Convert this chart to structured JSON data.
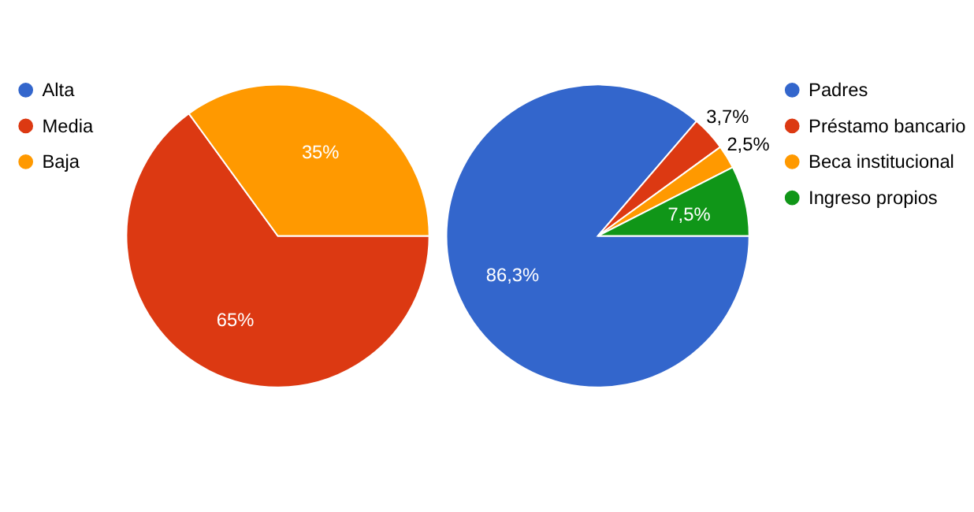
{
  "chart_data": [
    {
      "type": "pie",
      "categories": [
        "Alta",
        "Media",
        "Baja"
      ],
      "values": [
        0,
        65,
        35
      ],
      "colors": [
        "#3366cc",
        "#dc3912",
        "#ff9900"
      ],
      "value_labels": [
        null,
        "65%",
        "35%"
      ],
      "legend": "left"
    },
    {
      "type": "pie",
      "categories": [
        "Padres",
        "Préstamo bancario",
        "Beca institucional",
        "Ingreso propios"
      ],
      "values": [
        86.3,
        3.7,
        2.5,
        7.5
      ],
      "colors": [
        "#3366cc",
        "#dc3912",
        "#ff9900",
        "#109618"
      ],
      "value_labels": [
        "86,3%",
        "3,7%",
        "2,5%",
        "7,5%"
      ],
      "legend": "right"
    }
  ]
}
